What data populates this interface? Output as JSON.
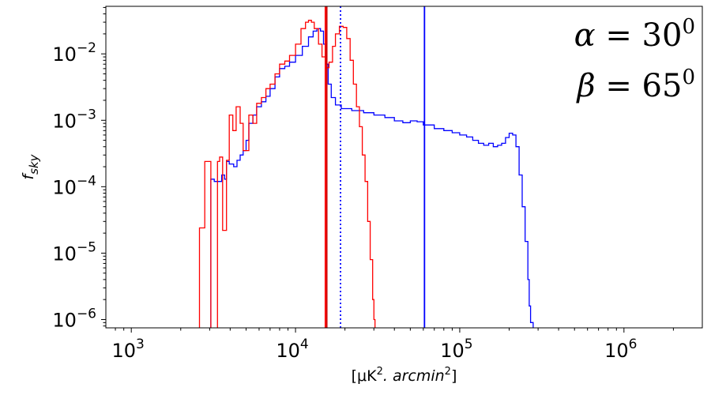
{
  "chart_data": {
    "type": "line",
    "xscale": "log",
    "yscale": "log",
    "xlim": [
      700,
      3000000
    ],
    "ylim": [
      7.5e-07,
      0.052
    ],
    "grid": false,
    "legend": "none",
    "xticks": [
      {
        "value": 1000,
        "base": "10",
        "exp": "3"
      },
      {
        "value": 10000,
        "base": "10",
        "exp": "4"
      },
      {
        "value": 100000,
        "base": "10",
        "exp": "5"
      },
      {
        "value": 1000000,
        "base": "10",
        "exp": "6"
      }
    ],
    "yticks": [
      {
        "value": 1e-06,
        "base": "10",
        "exp": "−6"
      },
      {
        "value": 1e-05,
        "base": "10",
        "exp": "−5"
      },
      {
        "value": 0.0001,
        "base": "10",
        "exp": "−4"
      },
      {
        "value": 0.001,
        "base": "10",
        "exp": "−3"
      },
      {
        "value": 0.01,
        "base": "10",
        "exp": "−2"
      }
    ],
    "xlabel": {
      "pre": "[μK",
      "sup1": "2",
      "mid": ". arcmin",
      "sup2": "2",
      "post": "]"
    },
    "ylabel": {
      "main": "f",
      "sub": "sky"
    },
    "annotations": [
      {
        "lhs": "α",
        "eq": " = 30",
        "sup": "0"
      },
      {
        "lhs": "β",
        "eq": " = 65",
        "sup": "0"
      }
    ],
    "series": [
      {
        "color": "#0000ff",
        "points": [
          [
            2600,
            0
          ],
          [
            2600,
            0
          ],
          [
            2800,
            0
          ],
          [
            3000,
            0
          ],
          [
            3050,
            0.00013
          ],
          [
            3200,
            0.00012
          ],
          [
            3450,
            0.00012
          ],
          [
            3550,
            0.00015
          ],
          [
            3700,
            0.00013
          ],
          [
            3800,
            0.00024
          ],
          [
            3950,
            0.00022
          ],
          [
            4200,
            0.0002
          ],
          [
            4400,
            0.00025
          ],
          [
            4600,
            0.0003
          ],
          [
            4800,
            0.00035
          ],
          [
            5000,
            0.0005
          ],
          [
            5200,
            0.0009
          ],
          [
            5500,
            0.0012
          ],
          [
            5800,
            0.0016
          ],
          [
            6200,
            0.0019
          ],
          [
            6600,
            0.0023
          ],
          [
            7000,
            0.003
          ],
          [
            7500,
            0.0045
          ],
          [
            8000,
            0.006
          ],
          [
            8600,
            0.0065
          ],
          [
            9200,
            0.0075
          ],
          [
            10000,
            0.0095
          ],
          [
            11000,
            0.013
          ],
          [
            12000,
            0.018
          ],
          [
            12800,
            0.022
          ],
          [
            13500,
            0.024
          ],
          [
            14200,
            0.022
          ],
          [
            14800,
            0.014
          ],
          [
            15300,
            0.007
          ],
          [
            15800,
            0.0035
          ],
          [
            16500,
            0.0022
          ],
          [
            17500,
            0.0017
          ],
          [
            19000,
            0.0015
          ],
          [
            22000,
            0.0014
          ],
          [
            26000,
            0.0013
          ],
          [
            30000,
            0.0012
          ],
          [
            35000,
            0.0011
          ],
          [
            40000,
            0.00098
          ],
          [
            45000,
            0.00092
          ],
          [
            50000,
            0.00098
          ],
          [
            55000,
            0.00095
          ],
          [
            60000,
            0.00085
          ],
          [
            70000,
            0.00075
          ],
          [
            80000,
            0.0007
          ],
          [
            90000,
            0.00065
          ],
          [
            100000,
            0.0006
          ],
          [
            110000,
            0.00056
          ],
          [
            120000,
            0.0005
          ],
          [
            130000,
            0.00045
          ],
          [
            140000,
            0.00042
          ],
          [
            150000,
            0.00045
          ],
          [
            160000,
            0.0004
          ],
          [
            170000,
            0.00042
          ],
          [
            180000,
            0.00045
          ],
          [
            190000,
            0.00055
          ],
          [
            200000,
            0.00064
          ],
          [
            210000,
            0.0006
          ],
          [
            220000,
            0.0004
          ],
          [
            230000,
            0.00015
          ],
          [
            240000,
            5e-05
          ],
          [
            250000,
            1.5e-05
          ],
          [
            260000,
            4e-06
          ],
          [
            265000,
            1.6e-06
          ],
          [
            270000,
            9e-07
          ],
          [
            280000,
            0
          ]
        ]
      },
      {
        "color": "#ff0000",
        "points": [
          [
            2600,
            0
          ],
          [
            2600,
            2.4e-05
          ],
          [
            2800,
            2.4e-05
          ],
          [
            2800,
            0.00024
          ],
          [
            3050,
            0.00024
          ],
          [
            3050,
            0
          ],
          [
            3350,
            0
          ],
          [
            3350,
            0.00024
          ],
          [
            3450,
            0.00024
          ],
          [
            3450,
            0.00028
          ],
          [
            3600,
            0.00028
          ],
          [
            3600,
            2.2e-05
          ],
          [
            3800,
            2.2e-05
          ],
          [
            3800,
            0.00025
          ],
          [
            3950,
            0.00025
          ],
          [
            3950,
            0.0012
          ],
          [
            4150,
            0.0012
          ],
          [
            4150,
            0.0007
          ],
          [
            4350,
            0.0007
          ],
          [
            4350,
            0.0016
          ],
          [
            4600,
            0.0016
          ],
          [
            4600,
            0.0009
          ],
          [
            4800,
            0.0009
          ],
          [
            4800,
            0.00035
          ],
          [
            5000,
            0.00035
          ],
          [
            5200,
            0.0012
          ],
          [
            5500,
            0.0009
          ],
          [
            5800,
            0.0018
          ],
          [
            6200,
            0.0022
          ],
          [
            6600,
            0.003
          ],
          [
            7000,
            0.0035
          ],
          [
            7500,
            0.005
          ],
          [
            8000,
            0.007
          ],
          [
            8600,
            0.0078
          ],
          [
            9200,
            0.0095
          ],
          [
            10000,
            0.014
          ],
          [
            10800,
            0.024
          ],
          [
            11500,
            0.03
          ],
          [
            12000,
            0.032
          ],
          [
            12500,
            0.03
          ],
          [
            13000,
            0.024
          ],
          [
            13800,
            0.014
          ],
          [
            14500,
            0.009
          ],
          [
            15200,
            0.0062
          ],
          [
            16000,
            0.0075
          ],
          [
            16800,
            0.013
          ],
          [
            17500,
            0.02
          ],
          [
            18500,
            0.026
          ],
          [
            19500,
            0.025
          ],
          [
            20500,
            0.017
          ],
          [
            21500,
            0.008
          ],
          [
            22500,
            0.0035
          ],
          [
            23500,
            0.0016
          ],
          [
            24500,
            0.0008
          ],
          [
            25500,
            0.0003
          ],
          [
            26500,
            0.00012
          ],
          [
            27500,
            3e-05
          ],
          [
            28500,
            8e-06
          ],
          [
            29500,
            2e-06
          ],
          [
            30000,
            1e-06
          ],
          [
            30500,
            0
          ]
        ]
      }
    ],
    "vlines": [
      {
        "x": 15200,
        "color": "#ff0000",
        "style": "solid"
      },
      {
        "x": 15500,
        "color": "#cc0000",
        "style": "solid"
      },
      {
        "x": 18800,
        "color": "#0000ff",
        "style": "dotted"
      },
      {
        "x": 61000,
        "color": "#0000ff",
        "style": "solid"
      }
    ]
  }
}
